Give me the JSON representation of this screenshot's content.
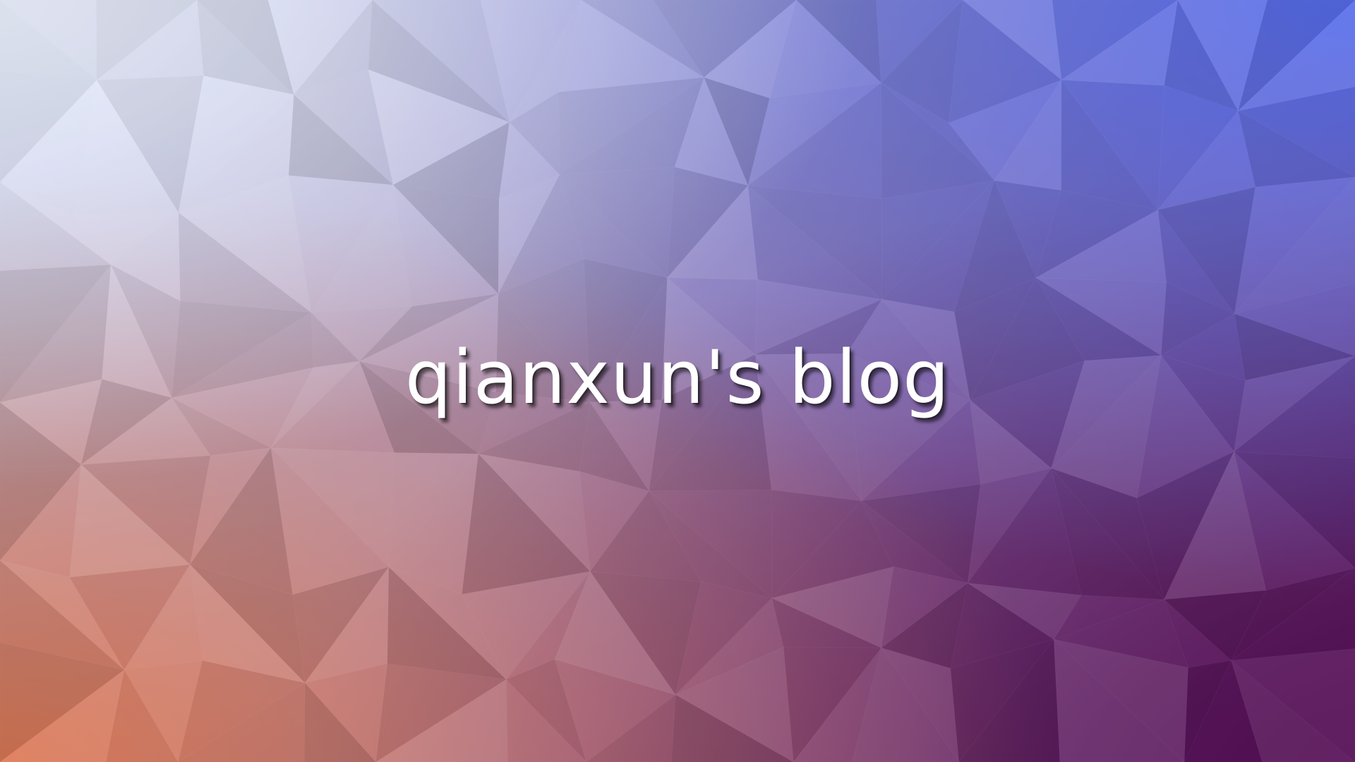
{
  "hero": {
    "title": "qianxun's blog"
  },
  "colors": {
    "top_left": "#e8eefb",
    "top_right": "#4f6ef6",
    "bottom_left": "#e07a52",
    "bottom_right": "#540f55",
    "title_text": "#ffffff"
  },
  "background": {
    "style": "low-poly triangle mosaic"
  }
}
